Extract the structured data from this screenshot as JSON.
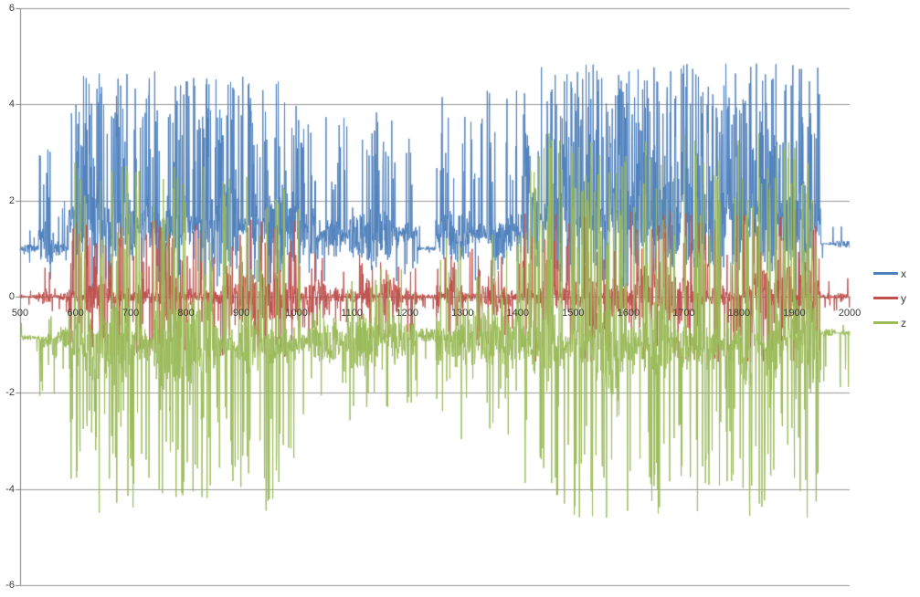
{
  "seed": 7,
  "chart_data": {
    "type": "line",
    "title": "",
    "xlabel": "",
    "ylabel": "",
    "x_range": [
      500,
      2000
    ],
    "y_range": [
      -6,
      6
    ],
    "x_ticks": [
      500,
      600,
      700,
      800,
      900,
      1000,
      1100,
      1200,
      1300,
      1400,
      1500,
      1600,
      1700,
      1800,
      1900,
      2000
    ],
    "y_ticks": [
      6,
      4,
      2,
      0,
      -2,
      -4,
      -6
    ],
    "grid": "horizontal",
    "legend_position": "right",
    "background": "#ffffff",
    "gridline_color": "#9a9a9a",
    "axis_color": "#808080",
    "label_color": "#3a3a3a",
    "samples_per_series": 2600,
    "segment_encoding": "Each series is a dense noisy waveform summarized as piecewise envelope segments: x0..x1 data range, base = center value, jitter = half-width of dense noise band, p_up/up = probability and extreme value of upward needle spikes, p_dn/dn = probability and extreme value of downward needle spikes.",
    "series": [
      {
        "name": "x",
        "color": "#4f81bd",
        "segments": [
          {
            "x0": 500,
            "x1": 533,
            "base": 1.0,
            "jitter": 0.06,
            "p_up": 0.02,
            "up": 1.5,
            "p_dn": 0.01,
            "dn": 0.7
          },
          {
            "x0": 533,
            "x1": 562,
            "base": 1.1,
            "jitter": 0.35,
            "p_up": 0.18,
            "up": 3.4,
            "p_dn": 0.05,
            "dn": 0.3
          },
          {
            "x0": 562,
            "x1": 588,
            "base": 1.0,
            "jitter": 0.12,
            "p_up": 0.05,
            "up": 2.0,
            "p_dn": 0.02,
            "dn": 0.6
          },
          {
            "x0": 588,
            "x1": 1005,
            "base": 1.5,
            "jitter": 0.75,
            "p_up": 0.22,
            "up": 4.7,
            "p_dn": 0.08,
            "dn": 0.1
          },
          {
            "x0": 1005,
            "x1": 1218,
            "base": 1.3,
            "jitter": 0.42,
            "p_up": 0.1,
            "up": 3.9,
            "p_dn": 0.04,
            "dn": 0.3
          },
          {
            "x0": 1218,
            "x1": 1252,
            "base": 1.0,
            "jitter": 0.12,
            "p_up": 0.03,
            "up": 1.6,
            "p_dn": 0.02,
            "dn": 0.6
          },
          {
            "x0": 1252,
            "x1": 1412,
            "base": 1.3,
            "jitter": 0.45,
            "p_up": 0.12,
            "up": 4.4,
            "p_dn": 0.04,
            "dn": 0.3
          },
          {
            "x0": 1412,
            "x1": 1948,
            "base": 1.6,
            "jitter": 0.85,
            "p_up": 0.26,
            "up": 4.85,
            "p_dn": 0.08,
            "dn": 0.1
          },
          {
            "x0": 1948,
            "x1": 2000,
            "base": 1.1,
            "jitter": 0.06,
            "p_up": 0.03,
            "up": 1.5,
            "p_dn": 0.02,
            "dn": 0.8
          }
        ]
      },
      {
        "name": "y",
        "color": "#c0504d",
        "segments": [
          {
            "x0": 500,
            "x1": 533,
            "base": 0,
            "jitter": 0.07,
            "p_up": 0.02,
            "up": 0.3,
            "p_dn": 0.02,
            "dn": -0.3
          },
          {
            "x0": 533,
            "x1": 562,
            "base": 0,
            "jitter": 0.25,
            "p_up": 0.08,
            "up": 0.8,
            "p_dn": 0.08,
            "dn": -0.8
          },
          {
            "x0": 562,
            "x1": 588,
            "base": 0,
            "jitter": 0.1,
            "p_up": 0.03,
            "up": 0.4,
            "p_dn": 0.03,
            "dn": -0.4
          },
          {
            "x0": 588,
            "x1": 1005,
            "base": 0,
            "jitter": 0.4,
            "p_up": 0.1,
            "up": 1.6,
            "p_dn": 0.1,
            "dn": -1.3
          },
          {
            "x0": 1005,
            "x1": 1218,
            "base": 0,
            "jitter": 0.28,
            "p_up": 0.05,
            "up": 0.9,
            "p_dn": 0.05,
            "dn": -0.9
          },
          {
            "x0": 1218,
            "x1": 1252,
            "base": 0,
            "jitter": 0.09,
            "p_up": 0.02,
            "up": 0.3,
            "p_dn": 0.02,
            "dn": -0.3
          },
          {
            "x0": 1252,
            "x1": 1412,
            "base": 0,
            "jitter": 0.32,
            "p_up": 0.06,
            "up": 1.1,
            "p_dn": 0.06,
            "dn": -1.1
          },
          {
            "x0": 1412,
            "x1": 1948,
            "base": 0,
            "jitter": 0.45,
            "p_up": 0.1,
            "up": 1.8,
            "p_dn": 0.1,
            "dn": -1.4
          },
          {
            "x0": 1948,
            "x1": 2000,
            "base": 0,
            "jitter": 0.09,
            "p_up": 0.03,
            "up": 0.4,
            "p_dn": 0.03,
            "dn": -0.4
          }
        ]
      },
      {
        "name": "z",
        "color": "#9bbb59",
        "segments": [
          {
            "x0": 500,
            "x1": 533,
            "base": -0.85,
            "jitter": 0.07,
            "p_up": 0.02,
            "up": -0.5,
            "p_dn": 0.02,
            "dn": -1.3
          },
          {
            "x0": 533,
            "x1": 562,
            "base": -0.9,
            "jitter": 0.4,
            "p_up": 0.06,
            "up": 0.2,
            "p_dn": 0.1,
            "dn": -2.1
          },
          {
            "x0": 562,
            "x1": 588,
            "base": -0.85,
            "jitter": 0.15,
            "p_up": 0.03,
            "up": -0.3,
            "p_dn": 0.04,
            "dn": -1.6
          },
          {
            "x0": 588,
            "x1": 1010,
            "base": -1.0,
            "jitter": 0.75,
            "p_up": 0.09,
            "up": 2.8,
            "p_dn": 0.12,
            "dn": -4.5
          },
          {
            "x0": 1010,
            "x1": 1218,
            "base": -0.9,
            "jitter": 0.45,
            "p_up": 0.04,
            "up": 0.6,
            "p_dn": 0.06,
            "dn": -2.6
          },
          {
            "x0": 1218,
            "x1": 1252,
            "base": -0.8,
            "jitter": 0.12,
            "p_up": 0.01,
            "up": -0.3,
            "p_dn": 0.02,
            "dn": -1.3
          },
          {
            "x0": 1252,
            "x1": 1412,
            "base": -0.9,
            "jitter": 0.5,
            "p_up": 0.06,
            "up": 1.5,
            "p_dn": 0.07,
            "dn": -3.0
          },
          {
            "x0": 1412,
            "x1": 1948,
            "base": -1.0,
            "jitter": 0.85,
            "p_up": 0.14,
            "up": 3.4,
            "p_dn": 0.12,
            "dn": -4.6
          },
          {
            "x0": 1948,
            "x1": 2000,
            "base": -0.75,
            "jitter": 0.06,
            "p_up": 0.01,
            "up": -0.4,
            "p_dn": 0.04,
            "dn": -1.9
          }
        ]
      }
    ]
  }
}
